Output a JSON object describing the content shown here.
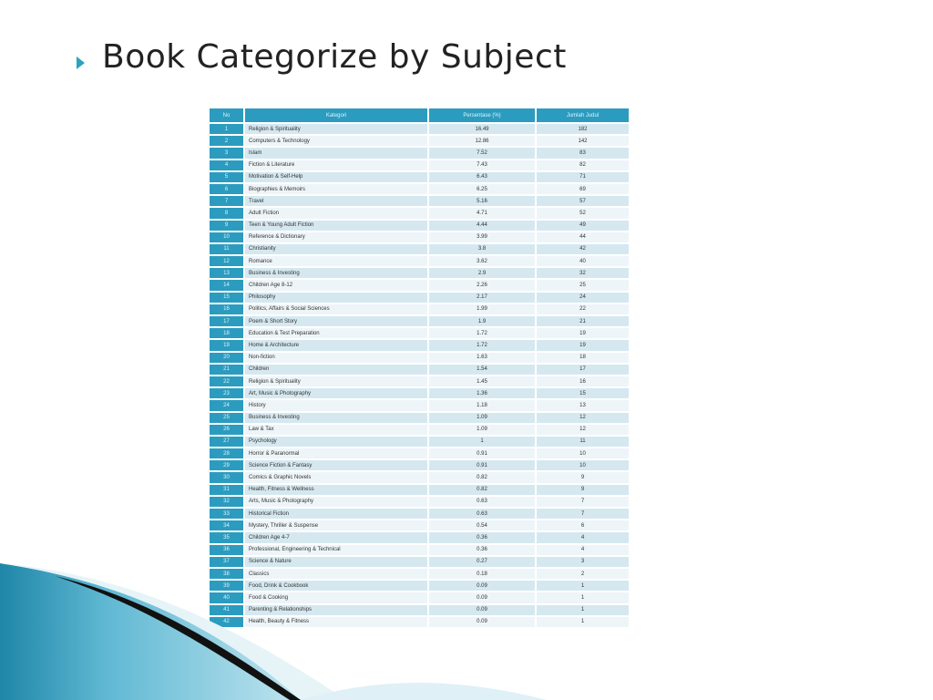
{
  "title": "Book Categorize by Subject",
  "table": {
    "headers": [
      "No",
      "Kategori",
      "Persentase (%)",
      "Jumlah Judul"
    ],
    "rows": [
      [
        "1",
        "Religion & Spirituality",
        "16.49",
        "182"
      ],
      [
        "2",
        "Computers & Technology",
        "12.86",
        "142"
      ],
      [
        "3",
        "Islam",
        "7.52",
        "83"
      ],
      [
        "4",
        "Fiction & Literature",
        "7.43",
        "82"
      ],
      [
        "5",
        "Motivation & Self-Help",
        "6.43",
        "71"
      ],
      [
        "6",
        "Biographies & Memoirs",
        "6.25",
        "69"
      ],
      [
        "7",
        "Travel",
        "5.16",
        "57"
      ],
      [
        "8",
        "Adult Fiction",
        "4.71",
        "52"
      ],
      [
        "9",
        "Teen & Young Adult Fiction",
        "4.44",
        "49"
      ],
      [
        "10",
        "Reference & Dictionary",
        "3.99",
        "44"
      ],
      [
        "11",
        "Christianity",
        "3.8",
        "42"
      ],
      [
        "12",
        "Romance",
        "3.62",
        "40"
      ],
      [
        "13",
        "Business & Investing",
        "2.9",
        "32"
      ],
      [
        "14",
        "Children Age 8-12",
        "2.26",
        "25"
      ],
      [
        "15",
        "Philosophy",
        "2.17",
        "24"
      ],
      [
        "16",
        "Politics, Affairs & Social Sciences",
        "1.99",
        "22"
      ],
      [
        "17",
        "Poem & Short Story",
        "1.9",
        "21"
      ],
      [
        "18",
        "Education & Test Preparation",
        "1.72",
        "19"
      ],
      [
        "19",
        "Home & Architecture",
        "1.72",
        "19"
      ],
      [
        "20",
        "Non-fiction",
        "1.63",
        "18"
      ],
      [
        "21",
        "Children",
        "1.54",
        "17"
      ],
      [
        "22",
        "Religion & Spirituality",
        "1.45",
        "16"
      ],
      [
        "23",
        "Art, Music & Photography",
        "1.36",
        "15"
      ],
      [
        "24",
        "History",
        "1.18",
        "13"
      ],
      [
        "25",
        "Business & Investing",
        "1.09",
        "12"
      ],
      [
        "26",
        "Law & Tax",
        "1.09",
        "12"
      ],
      [
        "27",
        "Psychology",
        "1",
        "11"
      ],
      [
        "28",
        "Horror & Paranormal",
        "0.91",
        "10"
      ],
      [
        "29",
        "Science Fiction & Fantasy",
        "0.91",
        "10"
      ],
      [
        "30",
        "Comics & Graphic Novels",
        "0.82",
        "9"
      ],
      [
        "31",
        "Health, Fitness & Wellness",
        "0.82",
        "9"
      ],
      [
        "32",
        "Arts, Music & Photography",
        "0.63",
        "7"
      ],
      [
        "33",
        "Historical Fiction",
        "0.63",
        "7"
      ],
      [
        "34",
        "Mystery, Thriller & Suspense",
        "0.54",
        "6"
      ],
      [
        "35",
        "Children Age 4-7",
        "0.36",
        "4"
      ],
      [
        "36",
        "Professional, Engineering & Technical",
        "0.36",
        "4"
      ],
      [
        "37",
        "Science & Nature",
        "0.27",
        "3"
      ],
      [
        "38",
        "Classics",
        "0.18",
        "2"
      ],
      [
        "39",
        "Food, Drink & Cookbook",
        "0.09",
        "1"
      ],
      [
        "40",
        "Food & Cooking",
        "0.09",
        "1"
      ],
      [
        "41",
        "Parenting & Relationships",
        "0.09",
        "1"
      ],
      [
        "42",
        "Health, Beauty & Fitness",
        "0.09",
        "1"
      ]
    ]
  },
  "colors": {
    "accent": "#2b9cbf",
    "row_dark": "#d5e8f0",
    "row_light": "#eef5f9"
  },
  "icons": {
    "bullet": "triangle-bullet-icon",
    "decoration": "teal-wave-decoration"
  }
}
